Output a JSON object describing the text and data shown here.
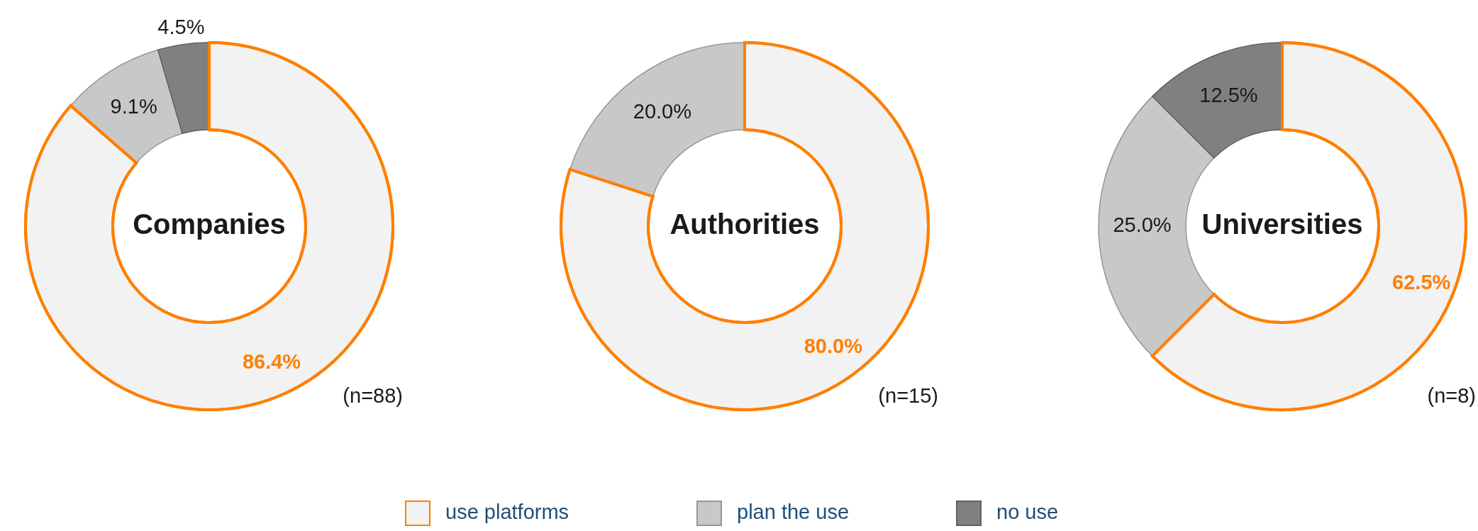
{
  "chart_data": [
    {
      "type": "donut",
      "title": "Companies",
      "categories": [
        "use platforms",
        "plan the use",
        "no use"
      ],
      "values": [
        86.4,
        9.1,
        4.5
      ],
      "colors": [
        "#f2f2f2",
        "#c8c8c8",
        "#808080"
      ],
      "value_labels": [
        "86.4%",
        "9.1%",
        "4.5%"
      ],
      "annotations": [
        "(n=88)"
      ],
      "legend": "bottom"
    },
    {
      "type": "donut",
      "title": "Authorities",
      "categories": [
        null,
        null,
        null
      ],
      "values": [
        80.0,
        20.0,
        0
      ],
      "colors": [
        "#f2f2f2",
        "#c8c8c8",
        "#808080"
      ],
      "value_labels": [
        "80.0%",
        "20.0%",
        null
      ],
      "annotations": [
        "(n=15)"
      ]
    },
    {
      "type": "donut",
      "title": "Universities",
      "categories": [
        null,
        null,
        null
      ],
      "values": [
        62.5,
        25.0,
        12.5
      ],
      "colors": [
        "#f2f2f2",
        "#c8c8c8",
        "#808080"
      ],
      "value_labels": [
        "62.5%",
        "25.0%",
        "12.5%"
      ],
      "annotations": [
        "(n=8)"
      ]
    }
  ]
}
